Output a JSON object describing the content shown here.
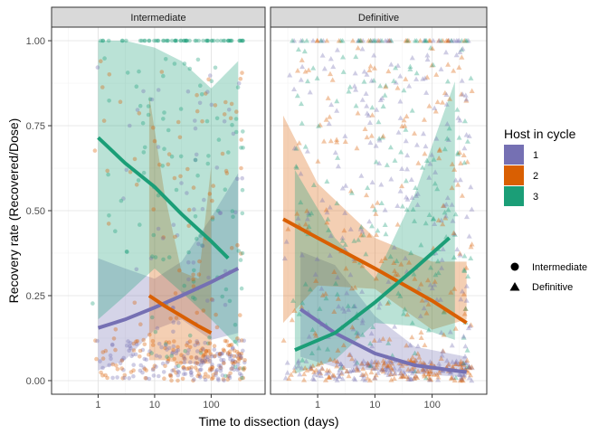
{
  "chart_data": {
    "type": "scatter",
    "facets": [
      "Intermediate",
      "Definitive"
    ],
    "xlabel": "Time to dissection (days)",
    "ylabel": "Recovery rate (Recovered/Dose)",
    "x_scale": "log10",
    "xlim": [
      0.15,
      900
    ],
    "ylim": [
      -0.04,
      1.04
    ],
    "x_ticks": [
      1,
      10,
      100
    ],
    "x_tick_labels": [
      "1",
      "10",
      "100"
    ],
    "y_ticks": [
      0,
      0.25,
      0.5,
      0.75,
      1.0
    ],
    "y_tick_labels": [
      "0.00",
      "0.25",
      "0.50",
      "0.75",
      "1.00"
    ],
    "grid": true,
    "legend": {
      "placement": "right",
      "color_title": "Host in cycle",
      "color_entries": [
        {
          "label": "1",
          "color": "#7570B3"
        },
        {
          "label": "2",
          "color": "#D95F02"
        },
        {
          "label": "3",
          "color": "#1B9E77"
        }
      ],
      "shape_entries": [
        {
          "label": "Intermediate",
          "shape": "circle"
        },
        {
          "label": "Definitive",
          "shape": "triangle"
        }
      ]
    },
    "panels": [
      {
        "name": "Intermediate",
        "fits": [
          {
            "host": "1",
            "color": "#7570B3",
            "x": [
              1,
              3,
              10,
              30,
              100,
              300
            ],
            "y": [
              0.155,
              0.18,
              0.215,
              0.25,
              0.29,
              0.33
            ],
            "ribbon_x": [
              1,
              3,
              10,
              30,
              100,
              300
            ],
            "lower": [
              0.03,
              0.06,
              0.15,
              0.18,
              0.12,
              0.14
            ],
            "upper": [
              0.36,
              0.33,
              0.3,
              0.35,
              0.48,
              0.61
            ]
          },
          {
            "host": "2",
            "color": "#D95F02",
            "x": [
              8,
              15,
              30,
              60,
              100
            ],
            "y": [
              0.25,
              0.22,
              0.19,
              0.16,
              0.14
            ],
            "ribbon_x": [
              8,
              15,
              30,
              60,
              100
            ],
            "lower": [
              0.06,
              0.06,
              0.05,
              0.05,
              0.05
            ],
            "upper": [
              0.84,
              0.55,
              0.32,
              0.3,
              0.63
            ]
          },
          {
            "host": "3",
            "color": "#1B9E77",
            "x": [
              1,
              3,
              10,
              30,
              100,
              200
            ],
            "y": [
              0.715,
              0.64,
              0.57,
              0.49,
              0.41,
              0.36
            ],
            "ribbon_x": [
              1,
              3,
              10,
              30,
              100,
              300
            ],
            "lower": [
              0.18,
              0.25,
              0.33,
              0.26,
              0.18,
              0.1
            ],
            "upper": [
              1.0,
              1.0,
              0.98,
              0.94,
              0.86,
              0.94
            ]
          }
        ],
        "points": {
          "shape": "circle",
          "count": 600
        }
      },
      {
        "name": "Definitive",
        "fits": [
          {
            "host": "1",
            "color": "#7570B3",
            "x": [
              0.5,
              2,
              10,
              50,
              400
            ],
            "y": [
              0.21,
              0.14,
              0.08,
              0.045,
              0.025
            ],
            "ribbon_x": [
              0.5,
              2,
              10,
              50,
              400
            ],
            "lower": [
              0.07,
              0.04,
              0.03,
              0.02,
              0.01
            ],
            "upper": [
              0.38,
              0.34,
              0.19,
              0.1,
              0.07
            ]
          },
          {
            "host": "2",
            "color": "#D95F02",
            "x": [
              0.25,
              1,
              10,
              100,
              400
            ],
            "y": [
              0.475,
              0.42,
              0.33,
              0.235,
              0.17
            ],
            "ribbon_x": [
              0.25,
              1,
              10,
              100,
              400
            ],
            "lower": [
              0.17,
              0.28,
              0.27,
              0.15,
              0.18
            ],
            "upper": [
              0.78,
              0.58,
              0.42,
              0.35,
              0.35
            ]
          },
          {
            "host": "3",
            "color": "#1B9E77",
            "x": [
              0.4,
              2,
              10,
              50,
              200
            ],
            "y": [
              0.09,
              0.14,
              0.23,
              0.33,
              0.42
            ],
            "ribbon_x": [
              0.4,
              2,
              10,
              50,
              250
            ],
            "lower": [
              0.02,
              0.06,
              0.17,
              0.16,
              0.12
            ],
            "upper": [
              0.62,
              0.42,
              0.3,
              0.55,
              0.88
            ]
          }
        ],
        "points": {
          "shape": "triangle",
          "count": 900
        }
      }
    ]
  }
}
